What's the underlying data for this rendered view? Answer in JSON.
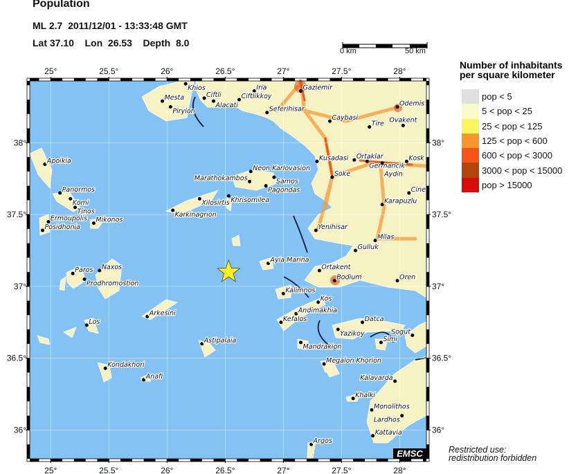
{
  "header": {
    "title": "Population",
    "event_line": "ML 2.7  2011/12/01 - 13:33:48 GMT",
    "location_line": "Lat 37.10    Lon  26.53    Depth  8.0"
  },
  "scale_bar": {
    "start_label": "0 km",
    "end_label": "50 km"
  },
  "map": {
    "lon_range": [
      24.82,
      28.23
    ],
    "lat_range": [
      35.8,
      38.43
    ],
    "ocean_color": "#84c2f4",
    "land_color": "#f7f2c4",
    "lon_ticks": [
      {
        "value": 25,
        "label": "25°"
      },
      {
        "value": 25.5,
        "label": "25.5°"
      },
      {
        "value": 26,
        "label": "26°"
      },
      {
        "value": 26.5,
        "label": "26.5°"
      },
      {
        "value": 27,
        "label": "27°"
      },
      {
        "value": 27.5,
        "label": "27.5°"
      },
      {
        "value": 28,
        "label": "28°"
      }
    ],
    "lat_ticks": [
      {
        "value": 38,
        "label": "38°"
      },
      {
        "value": 37.5,
        "label": "37.5°"
      },
      {
        "value": 37,
        "label": "37°"
      },
      {
        "value": 36.5,
        "label": "36.5°"
      },
      {
        "value": 36,
        "label": "36°"
      }
    ],
    "epicenter": {
      "lat": 37.1,
      "lon": 26.53,
      "icon": "star-icon",
      "color": "#ffee22"
    },
    "towns": [
      {
        "name": "Khios",
        "lon": 26.16,
        "lat": 38.41
      },
      {
        "name": "Mesta",
        "lon": 25.96,
        "lat": 38.29
      },
      {
        "name": "Piryion",
        "lon": 26.03,
        "lat": 38.25
      },
      {
        "name": "Ciftli",
        "lon": 26.32,
        "lat": 38.31
      },
      {
        "name": "Alacati",
        "lon": 26.4,
        "lat": 38.29
      },
      {
        "name": "Iria",
        "lon": 26.75,
        "lat": 38.36
      },
      {
        "name": "Ciftlikkoy",
        "lon": 26.62,
        "lat": 38.3
      },
      {
        "name": "Gaziemir",
        "lon": 27.15,
        "lat": 38.36
      },
      {
        "name": "Seferihisar",
        "lon": 26.86,
        "lat": 38.21
      },
      {
        "name": "Odemis",
        "lon": 27.98,
        "lat": 38.25
      },
      {
        "name": "Caybasi",
        "lon": 27.4,
        "lat": 38.15
      },
      {
        "name": "Tire",
        "lon": 27.74,
        "lat": 38.11
      },
      {
        "name": "Ovakent",
        "lon": 28.03,
        "lat": 38.12
      },
      {
        "name": "Kusadasi",
        "lon": 27.29,
        "lat": 37.87
      },
      {
        "name": "Ortaklar",
        "lon": 27.61,
        "lat": 37.88
      },
      {
        "name": "Germancik",
        "lon": 27.72,
        "lat": 37.87
      },
      {
        "name": "Aydin",
        "lon": 27.85,
        "lat": 37.86
      },
      {
        "name": "Kosk",
        "lon": 28.06,
        "lat": 37.87
      },
      {
        "name": "Soke",
        "lon": 27.42,
        "lat": 37.76
      },
      {
        "name": "Cine",
        "lon": 28.08,
        "lat": 37.65
      },
      {
        "name": "Karapuzlu",
        "lon": 27.85,
        "lat": 37.57
      },
      {
        "name": "Yenihisar",
        "lon": 27.28,
        "lat": 37.39
      },
      {
        "name": "Milas",
        "lon": 27.79,
        "lat": 37.32
      },
      {
        "name": "Gulluk",
        "lon": 27.62,
        "lat": 37.25
      },
      {
        "name": "Ortakent",
        "lon": 27.31,
        "lat": 37.11
      },
      {
        "name": "Bodium",
        "lon": 27.44,
        "lat": 37.04
      },
      {
        "name": "Oren",
        "lon": 27.98,
        "lat": 37.04
      },
      {
        "name": "Ayia Marina",
        "lon": 26.87,
        "lat": 37.16
      },
      {
        "name": "Kalimnos",
        "lon": 27.0,
        "lat": 36.95
      },
      {
        "name": "Kos",
        "lon": 27.3,
        "lat": 36.89
      },
      {
        "name": "Andimakhia",
        "lon": 27.11,
        "lat": 36.81
      },
      {
        "name": "Kefalos",
        "lon": 26.98,
        "lat": 36.75
      },
      {
        "name": "Datca",
        "lon": 27.68,
        "lat": 36.75
      },
      {
        "name": "Yazikoy",
        "lon": 27.47,
        "lat": 36.7
      },
      {
        "name": "Mandrakion",
        "lon": 27.15,
        "lat": 36.61
      },
      {
        "name": "Simi",
        "lon": 27.84,
        "lat": 36.61
      },
      {
        "name": "Sogut",
        "lon": 28.11,
        "lat": 36.66
      },
      {
        "name": "Megalon Khorion",
        "lon": 27.35,
        "lat": 36.46
      },
      {
        "name": "Kalavarda",
        "lon": 27.96,
        "lat": 36.34
      },
      {
        "name": "Khalki",
        "lon": 27.6,
        "lat": 36.22
      },
      {
        "name": "Monolithos",
        "lon": 27.76,
        "lat": 36.14
      },
      {
        "name": "Lardhos",
        "lon": 28.02,
        "lat": 36.1
      },
      {
        "name": "Kattavia",
        "lon": 27.77,
        "lat": 35.96
      },
      {
        "name": "Argos",
        "lon": 27.24,
        "lat": 35.9
      },
      {
        "name": "Neon Karlovasion",
        "lon": 26.72,
        "lat": 37.8
      },
      {
        "name": "Samos",
        "lon": 26.92,
        "lat": 37.76
      },
      {
        "name": "Marathokambos",
        "lon": 26.71,
        "lat": 37.73
      },
      {
        "name": "Pagondas",
        "lon": 26.85,
        "lat": 37.7
      },
      {
        "name": "Khrisomilea",
        "lon": 26.53,
        "lat": 37.63
      },
      {
        "name": "Xilosirtis",
        "lon": 26.28,
        "lat": 37.61
      },
      {
        "name": "Karkinagrion",
        "lon": 26.05,
        "lat": 37.53
      },
      {
        "name": "Apoikia",
        "lon": 24.95,
        "lat": 37.85
      },
      {
        "name": "Panormos",
        "lon": 25.08,
        "lat": 37.65
      },
      {
        "name": "Komi",
        "lon": 25.17,
        "lat": 37.61
      },
      {
        "name": "Tinos",
        "lon": 25.21,
        "lat": 37.55
      },
      {
        "name": "Ermoupolis",
        "lon": 24.98,
        "lat": 37.45
      },
      {
        "name": "Posidhonia",
        "lon": 24.93,
        "lat": 37.39
      },
      {
        "name": "Mikonos",
        "lon": 25.37,
        "lat": 37.44
      },
      {
        "name": "Paros",
        "lon": 25.19,
        "lat": 37.09
      },
      {
        "name": "Prodhromostion",
        "lon": 25.29,
        "lat": 37.05
      },
      {
        "name": "Naxos",
        "lon": 25.42,
        "lat": 37.11
      },
      {
        "name": "Arkesini",
        "lon": 25.83,
        "lat": 36.79
      },
      {
        "name": "Los",
        "lon": 25.31,
        "lat": 36.73
      },
      {
        "name": "Kondakhori",
        "lon": 25.47,
        "lat": 36.43
      },
      {
        "name": "Anafi",
        "lon": 25.8,
        "lat": 36.35
      },
      {
        "name": "Astipalaia",
        "lon": 26.3,
        "lat": 36.6
      }
    ],
    "logo": "EMSC"
  },
  "legend": {
    "title_line1": "Number of inhabitants",
    "title_line2": "per square kilometer",
    "items": [
      {
        "label": "pop < 5",
        "color": "#e0e0e0"
      },
      {
        "label": "5 < pop < 25",
        "color": "#fafacb"
      },
      {
        "label": "25 < pop < 125",
        "color": "#f9f660"
      },
      {
        "label": "125 < pop < 600",
        "color": "#f7962e"
      },
      {
        "label": "600 < pop < 3000",
        "color": "#f65318"
      },
      {
        "label": "3000 < pop < 15000",
        "color": "#b2440f"
      },
      {
        "label": "pop > 15000",
        "color": "#d60c0c"
      }
    ]
  },
  "footer": {
    "restricted_line1": "Restricted use:",
    "restricted_line2": "redistribution forbidden"
  }
}
